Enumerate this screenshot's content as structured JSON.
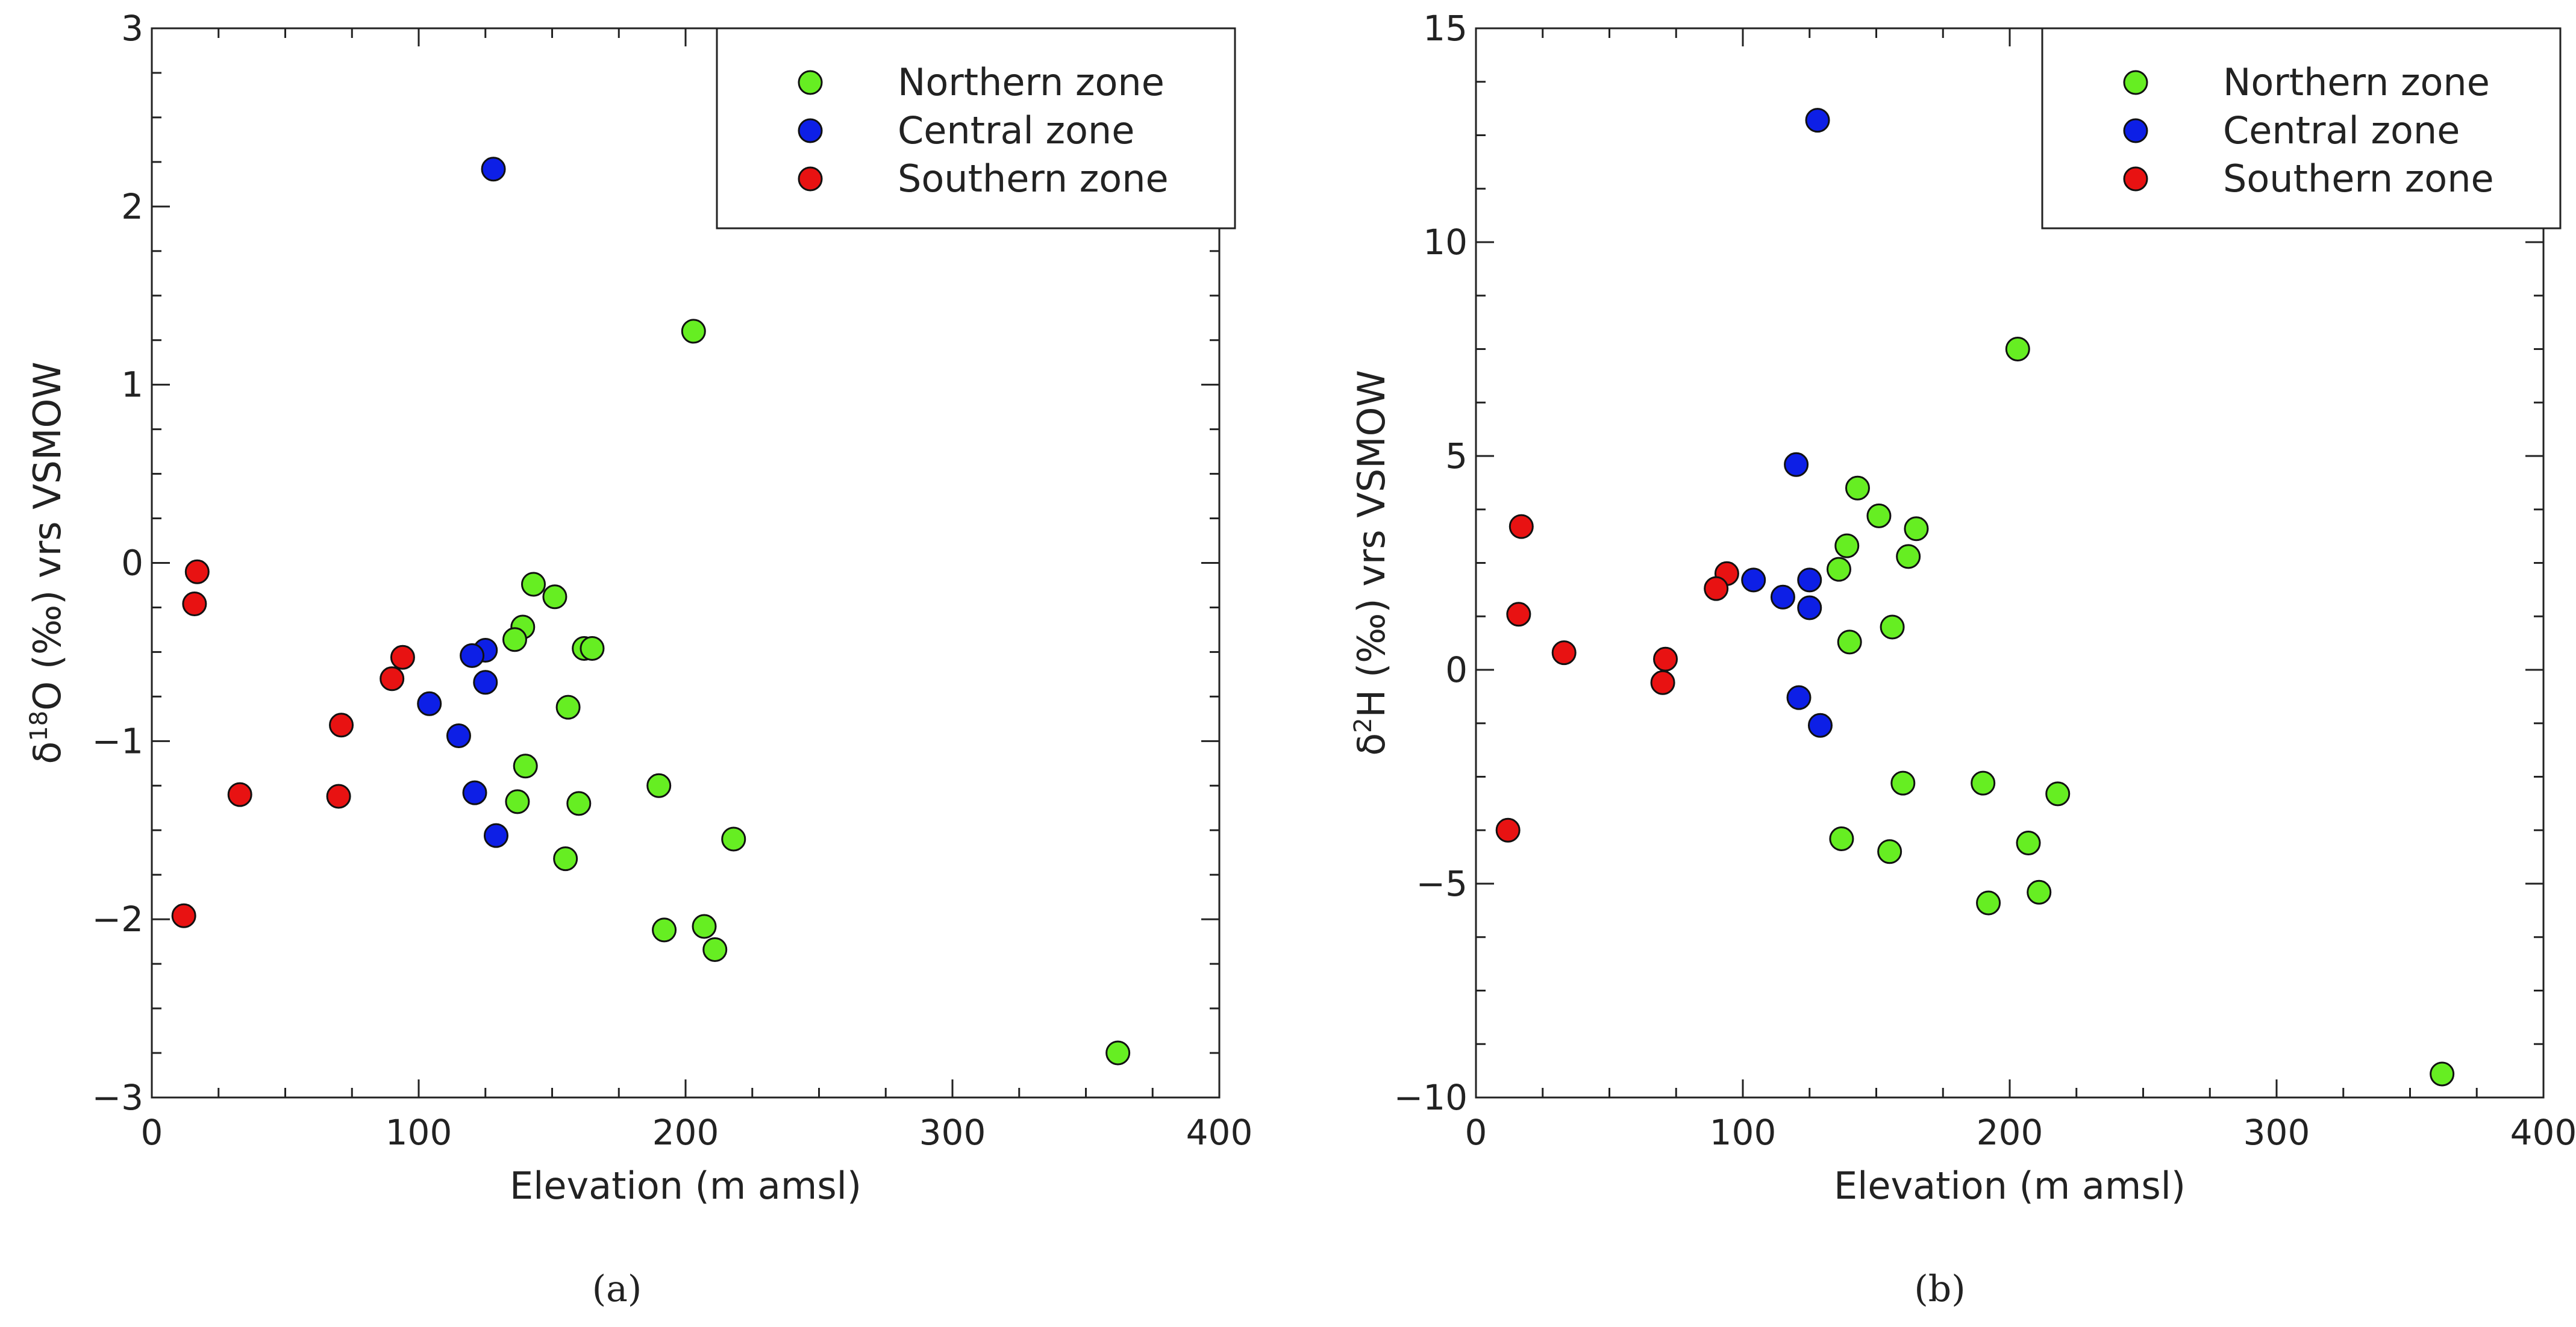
{
  "colors": {
    "northern": "#66ee22",
    "central": "#0d1fe6",
    "southern": "#e81212"
  },
  "chart_data": [
    {
      "type": "scatter",
      "panel": "(a)",
      "xlabel": "Elevation (m amsl)",
      "ylabel_parts": {
        "pre": "δ",
        "sup": "18",
        "post": "O (‰) vrs VSMOW"
      },
      "xlim": [
        0,
        400
      ],
      "ylim": [
        -3,
        3
      ],
      "xticks": [
        0,
        100,
        200,
        300,
        400
      ],
      "yticks": [
        -3,
        -2,
        -1,
        0,
        1,
        2,
        3
      ],
      "legend_position": "top-right",
      "series": [
        {
          "name": "Northern zone",
          "color_key": "northern",
          "points": [
            [
              203,
              1.3
            ],
            [
              143,
              -0.12
            ],
            [
              151,
              -0.19
            ],
            [
              139,
              -0.36
            ],
            [
              136,
              -0.43
            ],
            [
              162,
              -0.48
            ],
            [
              165,
              -0.48
            ],
            [
              156,
              -0.81
            ],
            [
              140,
              -1.14
            ],
            [
              137,
              -1.34
            ],
            [
              160,
              -1.35
            ],
            [
              190,
              -1.25
            ],
            [
              218,
              -1.55
            ],
            [
              155,
              -1.66
            ],
            [
              192,
              -2.06
            ],
            [
              207,
              -2.04
            ],
            [
              211,
              -2.17
            ],
            [
              362,
              -2.75
            ]
          ]
        },
        {
          "name": "Central zone",
          "color_key": "central",
          "points": [
            [
              128,
              2.21
            ],
            [
              125,
              -0.49
            ],
            [
              120,
              -0.52
            ],
            [
              125,
              -0.67
            ],
            [
              104,
              -0.79
            ],
            [
              115,
              -0.97
            ],
            [
              121,
              -1.29
            ],
            [
              129,
              -1.53
            ]
          ]
        },
        {
          "name": "Southern zone",
          "color_key": "southern",
          "points": [
            [
              17,
              -0.05
            ],
            [
              16,
              -0.23
            ],
            [
              94,
              -0.53
            ],
            [
              90,
              -0.65
            ],
            [
              71,
              -0.91
            ],
            [
              33,
              -1.3
            ],
            [
              70,
              -1.31
            ],
            [
              12,
              -1.98
            ]
          ]
        }
      ]
    },
    {
      "type": "scatter",
      "panel": "(b)",
      "xlabel": "Elevation (m amsl)",
      "ylabel_parts": {
        "pre": "δ",
        "sup": "2",
        "post": "H (‰) vrs VSMOW"
      },
      "xlim": [
        0,
        400
      ],
      "ylim": [
        -10,
        15
      ],
      "xticks": [
        0,
        100,
        200,
        300,
        400
      ],
      "yticks": [
        -10,
        -5,
        0,
        5,
        10,
        15
      ],
      "legend_position": "top-right",
      "series": [
        {
          "name": "Northern zone",
          "color_key": "northern",
          "points": [
            [
              203,
              7.5
            ],
            [
              143,
              4.25
            ],
            [
              151,
              3.6
            ],
            [
              165,
              3.3
            ],
            [
              139,
              2.9
            ],
            [
              162,
              2.65
            ],
            [
              136,
              2.35
            ],
            [
              156,
              1.0
            ],
            [
              140,
              0.65
            ],
            [
              160,
              -2.65
            ],
            [
              190,
              -2.65
            ],
            [
              218,
              -2.9
            ],
            [
              137,
              -3.95
            ],
            [
              155,
              -4.25
            ],
            [
              207,
              -4.05
            ],
            [
              211,
              -5.2
            ],
            [
              192,
              -5.45
            ],
            [
              362,
              -9.45
            ]
          ]
        },
        {
          "name": "Central zone",
          "color_key": "central",
          "points": [
            [
              128,
              12.85
            ],
            [
              120,
              4.8
            ],
            [
              104,
              2.1
            ],
            [
              125,
              2.1
            ],
            [
              115,
              1.7
            ],
            [
              125,
              1.45
            ],
            [
              121,
              -0.65
            ],
            [
              129,
              -1.3
            ]
          ]
        },
        {
          "name": "Southern zone",
          "color_key": "southern",
          "points": [
            [
              17,
              3.35
            ],
            [
              94,
              2.25
            ],
            [
              90,
              1.9
            ],
            [
              16,
              1.3
            ],
            [
              33,
              0.4
            ],
            [
              71,
              0.25
            ],
            [
              70,
              -0.3
            ],
            [
              12,
              -3.75
            ]
          ]
        }
      ]
    }
  ]
}
